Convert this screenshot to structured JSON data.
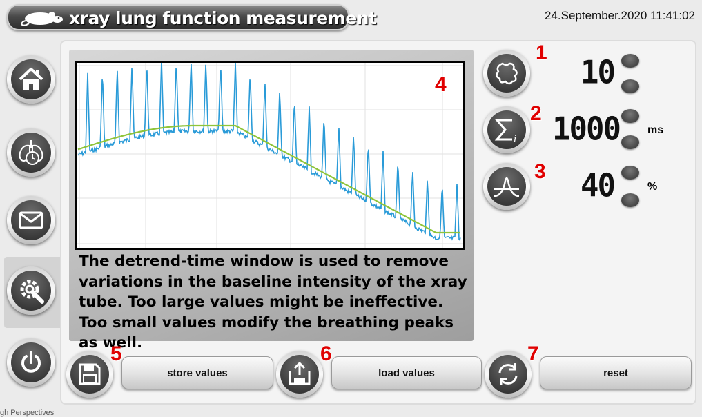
{
  "header": {
    "title": "xray lung function measurement",
    "datetime": "24.September.2020 11:41:02"
  },
  "sidebar": {
    "items": [
      {
        "name": "home",
        "icon": "home-icon"
      },
      {
        "name": "lung",
        "icon": "lung-stopwatch-icon"
      },
      {
        "name": "mail",
        "icon": "mail-icon"
      },
      {
        "name": "settings",
        "icon": "settings-wrench-gear-icon",
        "active": true
      },
      {
        "name": "power",
        "icon": "power-icon"
      }
    ]
  },
  "params": [
    {
      "number": "1",
      "icon": "blob-icon",
      "value": "10",
      "unit": ""
    },
    {
      "number": "2",
      "icon": "sum-icon",
      "value": "1000",
      "unit": "ms"
    },
    {
      "number": "3",
      "icon": "bell-curve-icon",
      "value": "40",
      "unit": "%"
    }
  ],
  "chart": {
    "number": "4",
    "series_colors": {
      "signal": "#2a9bd8",
      "baseline": "#8fc43a"
    }
  },
  "chart_data": {
    "type": "line",
    "series": [
      {
        "values": "signal trace with periodic breathing peaks"
      },
      {
        "values": "smooth detrended baseline"
      }
    ],
    "grid": true
  },
  "help": {
    "text": "The detrend-time window is used to remove variations in the baseline intensity of the xray tube. Too large values might be ineffective. Too small values modify the breathing peaks as well."
  },
  "actions": [
    {
      "number": "5",
      "icon": "floppy-disk-icon",
      "label": "store values"
    },
    {
      "number": "6",
      "icon": "floppy-upload-icon",
      "label": "load values"
    },
    {
      "number": "7",
      "icon": "refresh-icon",
      "label": "reset"
    }
  ],
  "footer": {
    "text": "gh Perspectives"
  }
}
